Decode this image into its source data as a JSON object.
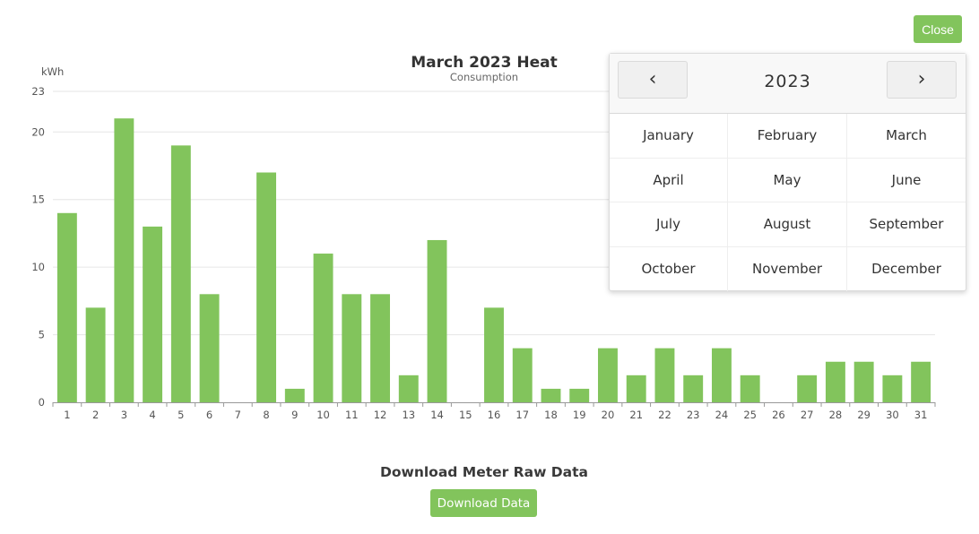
{
  "close_label": "Close",
  "chart_data": {
    "type": "bar",
    "title": "March 2023 Heat",
    "subtitle": "Consumption",
    "ylabel": "kWh",
    "xlabel": "",
    "categories": [
      "1",
      "2",
      "3",
      "4",
      "5",
      "6",
      "7",
      "8",
      "9",
      "10",
      "11",
      "12",
      "13",
      "14",
      "15",
      "16",
      "17",
      "18",
      "19",
      "20",
      "21",
      "22",
      "23",
      "24",
      "25",
      "26",
      "27",
      "28",
      "29",
      "30",
      "31"
    ],
    "values": [
      14,
      7,
      21,
      13,
      19,
      8,
      0,
      17,
      1,
      11,
      8,
      8,
      2,
      12,
      0,
      7,
      4,
      1,
      1,
      4,
      2,
      4,
      2,
      4,
      2,
      0,
      2,
      3,
      3,
      2,
      3
    ],
    "y_ticks": [
      0,
      5,
      10,
      15,
      20,
      23
    ],
    "ylim": [
      0,
      23
    ],
    "grid": true,
    "bar_color": "#82c45c"
  },
  "download": {
    "label": "Download Meter Raw Data",
    "button": "Download Data"
  },
  "picker": {
    "year": "2023",
    "prev": "‹",
    "next": "›",
    "months": [
      "January",
      "February",
      "March",
      "April",
      "May",
      "June",
      "July",
      "August",
      "September",
      "October",
      "November",
      "December"
    ]
  }
}
